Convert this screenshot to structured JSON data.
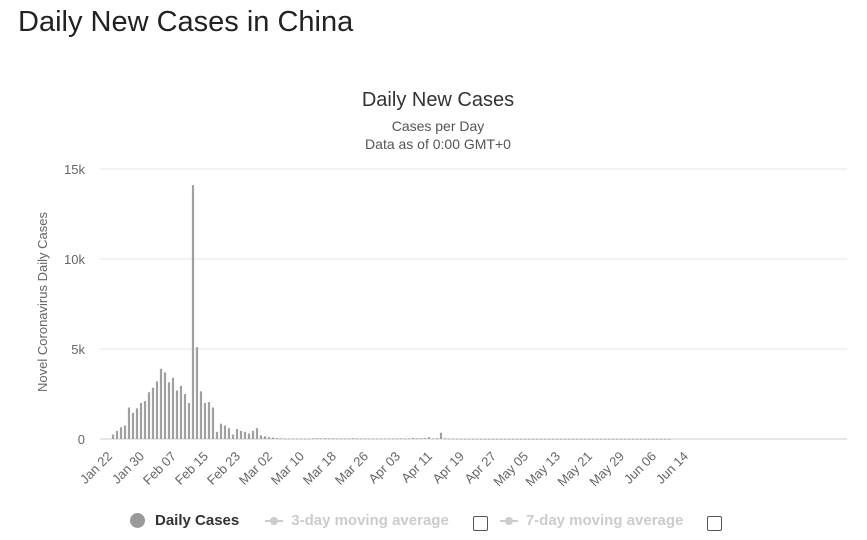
{
  "page": {
    "heading": "Daily New Cases in China"
  },
  "legend": {
    "daily": "Daily Cases",
    "ma3": "3-day moving average",
    "ma7": "7-day moving average"
  },
  "colors": {
    "bars": "#a0a0a0",
    "grid": "#e6e6e6",
    "legend_inactive": "#cccccc"
  },
  "chart_data": {
    "type": "bar",
    "title": "Daily New Cases",
    "subtitle_lines": [
      "Cases per Day",
      "Data as of 0:00 GMT+0"
    ],
    "ylabel": "Novel Coronavirus Daily Cases",
    "xlabel": "",
    "ylim": [
      0,
      15000
    ],
    "yticks": [
      0,
      5000,
      10000,
      15000
    ],
    "ytick_labels": [
      "0",
      "5k",
      "10k",
      "15k"
    ],
    "xtick_labels": [
      "Jan 22",
      "Jan 30",
      "Feb 07",
      "Feb 15",
      "Feb 23",
      "Mar 02",
      "Mar 10",
      "Mar 18",
      "Mar 26",
      "Apr 03",
      "Apr 11",
      "Apr 19",
      "Apr 27",
      "May 05",
      "May 13",
      "May 21",
      "May 29",
      "Jun 06",
      "Jun 14"
    ],
    "start_date": "2020-01-22",
    "grid": true,
    "series": [
      {
        "name": "Daily Cases",
        "values": [
          0,
          250,
          450,
          650,
          750,
          1750,
          1450,
          1700,
          2000,
          2100,
          2600,
          2850,
          3200,
          3900,
          3700,
          3150,
          3400,
          2700,
          2950,
          2500,
          2000,
          14100,
          5100,
          2650,
          2000,
          2050,
          1750,
          400,
          850,
          750,
          600,
          250,
          550,
          450,
          400,
          300,
          450,
          600,
          200,
          150,
          100,
          80,
          50,
          40,
          20,
          20,
          30,
          25,
          20,
          15,
          25,
          40,
          40,
          35,
          50,
          30,
          45,
          30,
          40,
          30,
          40,
          45,
          30,
          35,
          30,
          30,
          25,
          25,
          30,
          30,
          30,
          30,
          40,
          40,
          30,
          30,
          60,
          40,
          40,
          50,
          100,
          30,
          45,
          350,
          40,
          20,
          20,
          15,
          12,
          10,
          10,
          10,
          10,
          5,
          5,
          5,
          5,
          5,
          5,
          5,
          5,
          5,
          5,
          5,
          5,
          5,
          5,
          5,
          5,
          5,
          5,
          5,
          5,
          5,
          5,
          5,
          5,
          5,
          5,
          5,
          5,
          5,
          5,
          5,
          5,
          5,
          5,
          5,
          5,
          5,
          5,
          5,
          5,
          5,
          5,
          5,
          5,
          5,
          5,
          5,
          5
        ]
      }
    ]
  }
}
